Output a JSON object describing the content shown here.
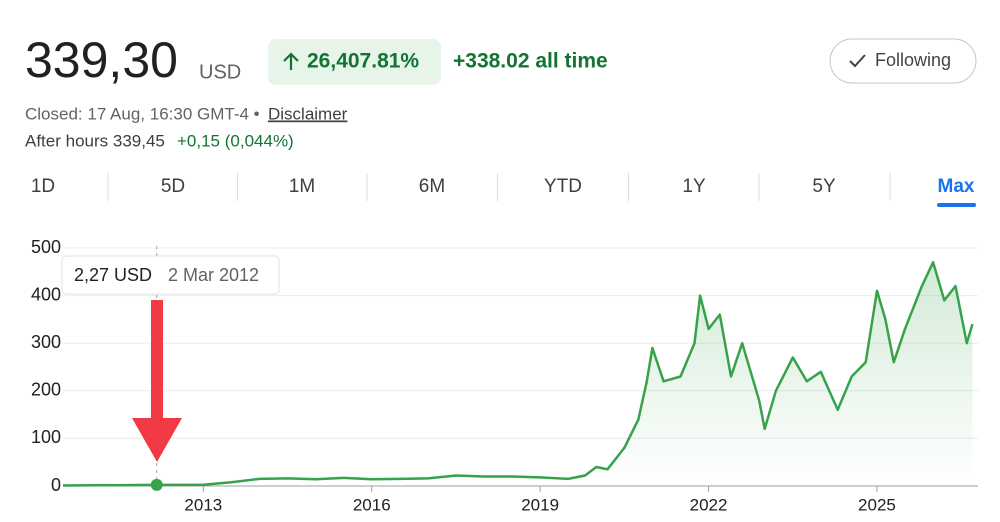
{
  "header": {
    "price": "339,30",
    "currency": "USD",
    "change_pct": "26,407.81%",
    "change_abs": "+338.02 all time",
    "follow_button": "Following",
    "closed": "Closed: 17 Aug, 16:30 GMT-4 •",
    "disclaimer": "Disclaimer",
    "after_hours": "After hours 339,45",
    "after_hours_change": "+0,15 (0,044%)"
  },
  "tabs": [
    "1D",
    "5D",
    "1M",
    "6M",
    "YTD",
    "1Y",
    "5Y",
    "Max"
  ],
  "chart_data": {
    "type": "line",
    "color": "#38a24b",
    "grid": true,
    "x": [
      2010.5,
      2011,
      2012.17,
      2013,
      2013.5,
      2014,
      2014.5,
      2015,
      2015.5,
      2016,
      2016.5,
      2017,
      2017.5,
      2018,
      2018.5,
      2019,
      2019.5,
      2019.8,
      2020,
      2020.2,
      2020.5,
      2020.75,
      2020.9,
      2021,
      2021.2,
      2021.5,
      2021.75,
      2021.85,
      2022,
      2022.2,
      2022.4,
      2022.6,
      2022.9,
      2023,
      2023.2,
      2023.5,
      2023.75,
      2024,
      2024.3,
      2024.55,
      2024.8,
      2025,
      2025.15,
      2025.3,
      2025.5,
      2025.8,
      2026,
      2026.2,
      2026.4,
      2026.6,
      2026.7
    ],
    "series": [
      {
        "values": [
          1,
          1.5,
          2.27,
          2.5,
          8,
          15,
          16,
          14,
          17,
          14,
          15,
          16,
          22,
          20,
          20,
          18,
          15,
          22,
          40,
          35,
          80,
          140,
          220,
          290,
          220,
          230,
          300,
          400,
          330,
          360,
          230,
          300,
          180,
          120,
          200,
          270,
          220,
          240,
          160,
          230,
          260,
          410,
          350,
          260,
          330,
          420,
          470,
          390,
          420,
          300,
          340
        ]
      }
    ],
    "xlim": [
      2010.5,
      2026.8
    ],
    "xticks": [
      2013,
      2016,
      2019,
      2022,
      2025
    ],
    "ylim": [
      0,
      500
    ],
    "yticks": [
      0,
      100,
      200,
      300,
      400,
      500
    ],
    "highlight": {
      "x": 2012.17,
      "y": 2.27,
      "label": "2,27 USD",
      "date": "2 Mar 2012"
    }
  }
}
